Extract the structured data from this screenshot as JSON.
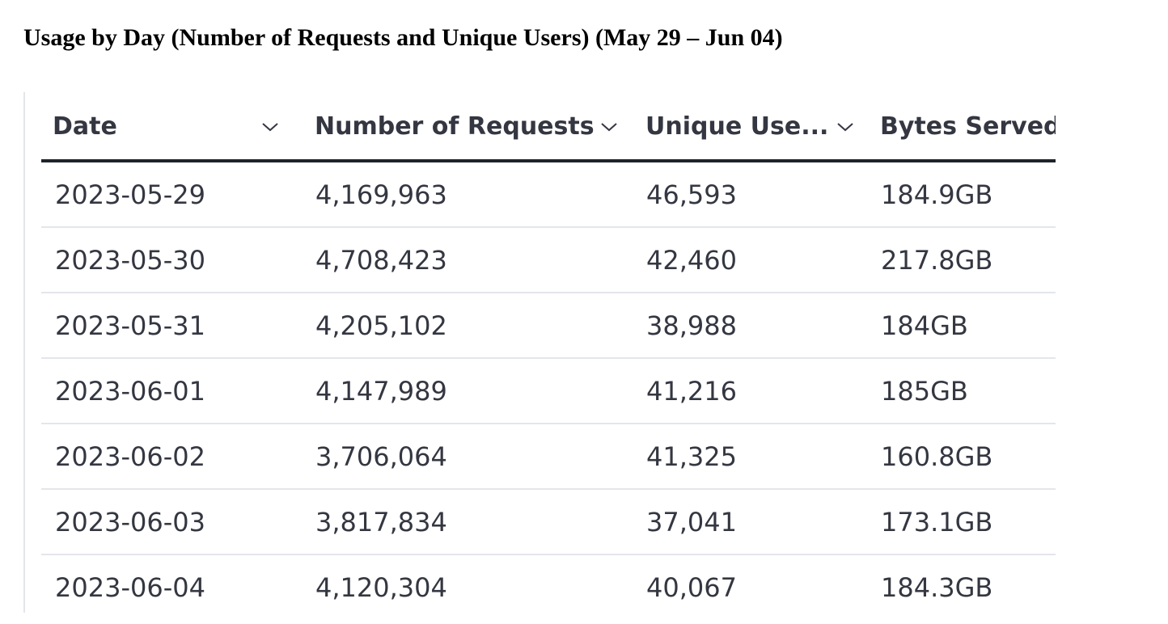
{
  "title": "Usage by Day (Number of Requests and Unique Users) (May 29 – Jun 04)",
  "table": {
    "columns": [
      {
        "label": "Date",
        "sortable": true,
        "icon": "chevron-down-icon"
      },
      {
        "label": "Number of Requests",
        "sortable": true,
        "icon": "chevron-down-icon"
      },
      {
        "label": "Unique Use...",
        "sortable": true,
        "icon": "chevron-down-icon"
      },
      {
        "label": "Bytes Served",
        "sortable": false
      }
    ],
    "rows": [
      [
        "2023-05-29",
        "4,169,963",
        "46,593",
        "184.9GB"
      ],
      [
        "2023-05-30",
        "4,708,423",
        "42,460",
        "217.8GB"
      ],
      [
        "2023-05-31",
        "4,205,102",
        "38,988",
        "184GB"
      ],
      [
        "2023-06-01",
        "4,147,989",
        "41,216",
        "185GB"
      ],
      [
        "2023-06-02",
        "3,706,064",
        "41,325",
        "160.8GB"
      ],
      [
        "2023-06-03",
        "3,817,834",
        "37,041",
        "173.1GB"
      ],
      [
        "2023-06-04",
        "4,120,304",
        "40,067",
        "184.3GB"
      ]
    ]
  },
  "colors": {
    "text": "#343741",
    "header_rule": "#1f2329",
    "row_rule": "#e3e6ea"
  }
}
